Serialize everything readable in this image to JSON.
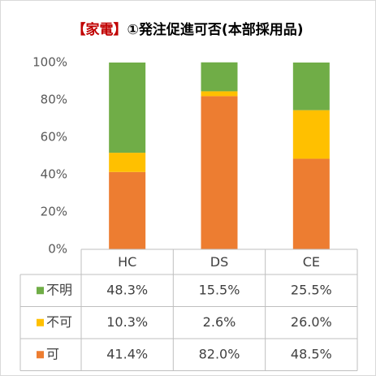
{
  "chart_data": {
    "type": "stacked_bar",
    "title": [
      "【家電】",
      "①発注促進可否(本部採用品)"
    ],
    "title_colors": [
      "#c00000",
      "#000000"
    ],
    "categories": [
      "HC",
      "DS",
      "CE"
    ],
    "series": [
      {
        "name": "可",
        "color": "#ed7d31",
        "values": [
          41.4,
          82.0,
          48.5
        ],
        "value_labels": [
          "41.4%",
          "82.0%",
          "48.5%"
        ]
      },
      {
        "name": "不可",
        "color": "#ffc000",
        "values": [
          10.3,
          2.6,
          26.0
        ],
        "value_labels": [
          "10.3%",
          "2.6%",
          "26.0%"
        ]
      },
      {
        "name": "不明",
        "color": "#70ad47",
        "values": [
          48.3,
          15.5,
          25.5
        ],
        "value_labels": [
          "48.3%",
          "15.5%",
          "25.5%"
        ]
      }
    ],
    "ylim": [
      0,
      100
    ],
    "yticks": [
      {
        "value": 0,
        "label": "0%"
      },
      {
        "value": 20,
        "label": "20%"
      },
      {
        "value": 40,
        "label": "40%"
      },
      {
        "value": 60,
        "label": "60%"
      },
      {
        "value": 80,
        "label": "80%"
      },
      {
        "value": 100,
        "label": "100%"
      }
    ],
    "grid": false
  }
}
